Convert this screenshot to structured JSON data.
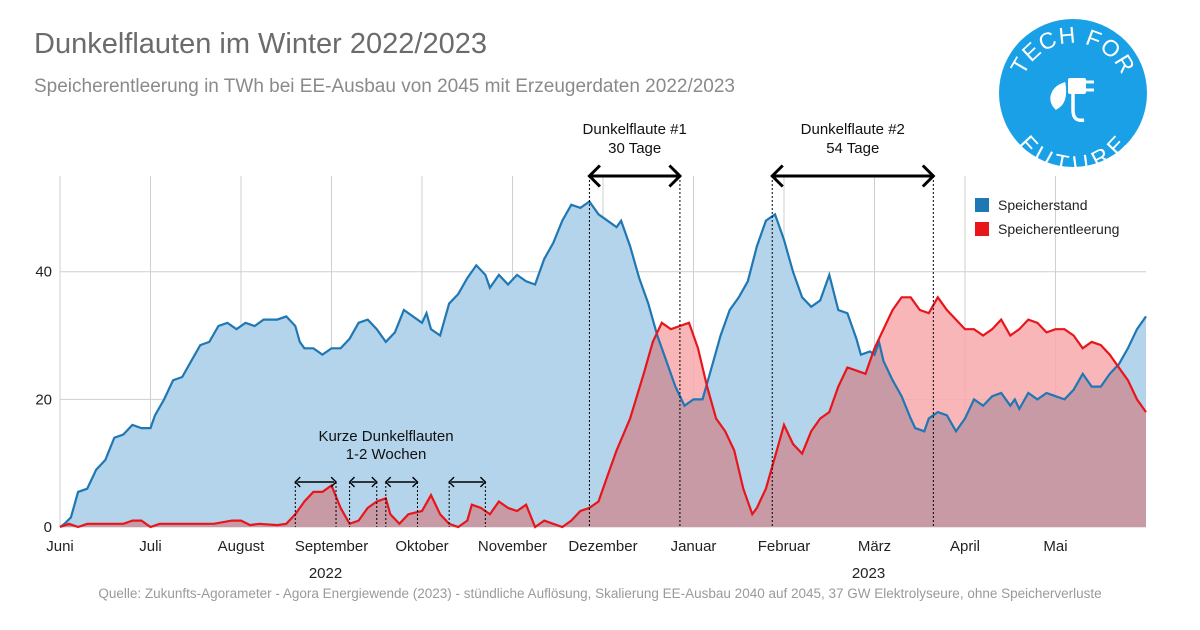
{
  "title": "Dunkelflauten im Winter 2022/2023",
  "subtitle": "Speicherentleerung in TWh bei EE-Ausbau von 2045 mit Erzeugerdaten 2022/2023",
  "source": "Quelle: Zukunfts-Agorameter - Agora Energiewende (2023) - stündliche Auflösung, Skalierung EE-Ausbau 2040 auf 2045, 37 GW Elektrolyseure, ohne Speicherverluste",
  "logo": {
    "text_top": "TECH FOR",
    "text_bottom": "FUTURE",
    "color": "#1aa0e6",
    "icon": "plug-leaf-icon"
  },
  "colors": {
    "speicherstand_line": "#1f77b4",
    "speicherstand_fill": "#b3d4ea",
    "entleerung_line": "#e8151b",
    "entleerung_fill": "#f7a9ab",
    "overlap_fill": "#c89aa5",
    "grid": "#cfcfcf"
  },
  "chart_data": {
    "type": "area",
    "x_unit": "month (0 = 1. Juni 2022, 12 = 1. Juni 2023)",
    "xlim": [
      0,
      12
    ],
    "ylim": [
      0,
      55
    ],
    "yticks": [
      0,
      20,
      40
    ],
    "grid": true,
    "legend_position": "top-right",
    "x_ticks": [
      {
        "x": 0,
        "label": "Juni"
      },
      {
        "x": 1,
        "label": "Juli"
      },
      {
        "x": 2,
        "label": "August"
      },
      {
        "x": 3,
        "label": "September"
      },
      {
        "x": 4,
        "label": "Oktober"
      },
      {
        "x": 5,
        "label": "November"
      },
      {
        "x": 6,
        "label": "Dezember"
      },
      {
        "x": 7,
        "label": "Januar"
      },
      {
        "x": 8,
        "label": "Februar"
      },
      {
        "x": 9,
        "label": "März"
      },
      {
        "x": 10,
        "label": "April"
      },
      {
        "x": 11,
        "label": "Mai"
      }
    ],
    "year_labels": [
      {
        "x": 3.0,
        "label": "2022"
      },
      {
        "x": 9.0,
        "label": "2023"
      }
    ],
    "series": [
      {
        "name": "Speicherstand",
        "points": [
          [
            0,
            0
          ],
          [
            0.05,
            0.5
          ],
          [
            0.12,
            1.5
          ],
          [
            0.2,
            5.5
          ],
          [
            0.3,
            6
          ],
          [
            0.4,
            9
          ],
          [
            0.5,
            10.5
          ],
          [
            0.6,
            14
          ],
          [
            0.7,
            14.5
          ],
          [
            0.8,
            16
          ],
          [
            0.9,
            15.5
          ],
          [
            1.0,
            15.5
          ],
          [
            1.05,
            17.5
          ],
          [
            1.15,
            20
          ],
          [
            1.25,
            23
          ],
          [
            1.35,
            23.5
          ],
          [
            1.45,
            26
          ],
          [
            1.55,
            28.5
          ],
          [
            1.65,
            29
          ],
          [
            1.75,
            31.5
          ],
          [
            1.85,
            32
          ],
          [
            1.95,
            31
          ],
          [
            2.05,
            32
          ],
          [
            2.15,
            31.5
          ],
          [
            2.25,
            32.5
          ],
          [
            2.4,
            32.5
          ],
          [
            2.5,
            33
          ],
          [
            2.6,
            31.5
          ],
          [
            2.65,
            29
          ],
          [
            2.7,
            28
          ],
          [
            2.8,
            28
          ],
          [
            2.9,
            27
          ],
          [
            3.0,
            28
          ],
          [
            3.1,
            28
          ],
          [
            3.2,
            29.5
          ],
          [
            3.3,
            32
          ],
          [
            3.4,
            32.5
          ],
          [
            3.5,
            31
          ],
          [
            3.6,
            29
          ],
          [
            3.7,
            30.5
          ],
          [
            3.8,
            34
          ],
          [
            3.9,
            33
          ],
          [
            4.0,
            32
          ],
          [
            4.05,
            33.5
          ],
          [
            4.1,
            31
          ],
          [
            4.2,
            30
          ],
          [
            4.3,
            35
          ],
          [
            4.4,
            36.5
          ],
          [
            4.5,
            39
          ],
          [
            4.6,
            41
          ],
          [
            4.7,
            39.5
          ],
          [
            4.75,
            37.5
          ],
          [
            4.85,
            39.5
          ],
          [
            4.95,
            38
          ],
          [
            5.05,
            39.5
          ],
          [
            5.15,
            38.5
          ],
          [
            5.25,
            38
          ],
          [
            5.35,
            42
          ],
          [
            5.45,
            44.5
          ],
          [
            5.55,
            48
          ],
          [
            5.65,
            50.5
          ],
          [
            5.75,
            50
          ],
          [
            5.85,
            51
          ],
          [
            5.95,
            49
          ],
          [
            6.05,
            48
          ],
          [
            6.15,
            47
          ],
          [
            6.2,
            48
          ],
          [
            6.3,
            44
          ],
          [
            6.4,
            39
          ],
          [
            6.5,
            35
          ],
          [
            6.6,
            30
          ],
          [
            6.7,
            26
          ],
          [
            6.8,
            22
          ],
          [
            6.9,
            19
          ],
          [
            7.0,
            20
          ],
          [
            7.1,
            20
          ],
          [
            7.2,
            25
          ],
          [
            7.3,
            30
          ],
          [
            7.4,
            34
          ],
          [
            7.5,
            36
          ],
          [
            7.6,
            38.5
          ],
          [
            7.7,
            44
          ],
          [
            7.8,
            48
          ],
          [
            7.9,
            49
          ],
          [
            8.0,
            45
          ],
          [
            8.1,
            40
          ],
          [
            8.2,
            36
          ],
          [
            8.3,
            34.5
          ],
          [
            8.4,
            35.5
          ],
          [
            8.5,
            39.5
          ],
          [
            8.6,
            34
          ],
          [
            8.7,
            33.5
          ],
          [
            8.8,
            29.5
          ],
          [
            8.85,
            27
          ],
          [
            8.95,
            27.5
          ],
          [
            9.0,
            27
          ],
          [
            9.05,
            29
          ],
          [
            9.1,
            26
          ],
          [
            9.2,
            23
          ],
          [
            9.3,
            20.5
          ],
          [
            9.4,
            17
          ],
          [
            9.45,
            15.5
          ],
          [
            9.55,
            15
          ],
          [
            9.6,
            17
          ],
          [
            9.7,
            18
          ],
          [
            9.8,
            17.5
          ],
          [
            9.9,
            15
          ],
          [
            10.0,
            17
          ],
          [
            10.1,
            20
          ],
          [
            10.2,
            19
          ],
          [
            10.3,
            20.5
          ],
          [
            10.4,
            21
          ],
          [
            10.5,
            19
          ],
          [
            10.55,
            20
          ],
          [
            10.6,
            18.5
          ],
          [
            10.7,
            21
          ],
          [
            10.8,
            20
          ],
          [
            10.9,
            21
          ],
          [
            11.0,
            20.5
          ],
          [
            11.1,
            20
          ],
          [
            11.2,
            21.5
          ],
          [
            11.3,
            24
          ],
          [
            11.4,
            22
          ],
          [
            11.5,
            22
          ],
          [
            11.6,
            24
          ],
          [
            11.7,
            25.5
          ],
          [
            11.8,
            28
          ],
          [
            11.9,
            31
          ],
          [
            12.0,
            33
          ]
        ]
      },
      {
        "name": "Speicherentleerung",
        "points": [
          [
            0,
            0
          ],
          [
            0.1,
            0.5
          ],
          [
            0.2,
            0
          ],
          [
            0.3,
            0.5
          ],
          [
            0.5,
            0.5
          ],
          [
            0.7,
            0.5
          ],
          [
            0.8,
            1
          ],
          [
            0.9,
            1
          ],
          [
            1.0,
            0
          ],
          [
            1.1,
            0.5
          ],
          [
            1.3,
            0.5
          ],
          [
            1.5,
            0.5
          ],
          [
            1.7,
            0.5
          ],
          [
            1.9,
            1
          ],
          [
            2.0,
            1
          ],
          [
            2.1,
            0.3
          ],
          [
            2.2,
            0.5
          ],
          [
            2.4,
            0.3
          ],
          [
            2.5,
            0.5
          ],
          [
            2.6,
            2
          ],
          [
            2.7,
            4
          ],
          [
            2.8,
            5.5
          ],
          [
            2.9,
            5.5
          ],
          [
            3.0,
            6.5
          ],
          [
            3.1,
            3
          ],
          [
            3.2,
            0.5
          ],
          [
            3.3,
            1
          ],
          [
            3.4,
            3
          ],
          [
            3.5,
            4
          ],
          [
            3.6,
            4.5
          ],
          [
            3.65,
            2
          ],
          [
            3.75,
            0.5
          ],
          [
            3.85,
            2
          ],
          [
            4.0,
            2.5
          ],
          [
            4.1,
            5
          ],
          [
            4.2,
            2
          ],
          [
            4.3,
            0.5
          ],
          [
            4.4,
            0
          ],
          [
            4.5,
            1
          ],
          [
            4.55,
            3.5
          ],
          [
            4.65,
            3
          ],
          [
            4.75,
            2
          ],
          [
            4.85,
            4
          ],
          [
            4.95,
            3
          ],
          [
            5.05,
            2.5
          ],
          [
            5.15,
            3.5
          ],
          [
            5.25,
            0
          ],
          [
            5.35,
            1
          ],
          [
            5.45,
            0.5
          ],
          [
            5.55,
            0
          ],
          [
            5.65,
            1
          ],
          [
            5.75,
            2.5
          ],
          [
            5.85,
            3
          ],
          [
            5.95,
            4
          ],
          [
            6.05,
            8
          ],
          [
            6.15,
            12
          ],
          [
            6.3,
            17
          ],
          [
            6.45,
            24
          ],
          [
            6.55,
            29
          ],
          [
            6.65,
            32
          ],
          [
            6.75,
            31
          ],
          [
            6.85,
            31.5
          ],
          [
            6.95,
            32
          ],
          [
            7.05,
            28
          ],
          [
            7.15,
            22
          ],
          [
            7.25,
            17
          ],
          [
            7.35,
            15
          ],
          [
            7.45,
            12
          ],
          [
            7.55,
            6
          ],
          [
            7.65,
            2
          ],
          [
            7.7,
            3
          ],
          [
            7.8,
            6
          ],
          [
            7.9,
            11
          ],
          [
            8.0,
            16
          ],
          [
            8.1,
            13
          ],
          [
            8.2,
            11.5
          ],
          [
            8.3,
            15
          ],
          [
            8.4,
            17
          ],
          [
            8.5,
            18
          ],
          [
            8.6,
            22
          ],
          [
            8.7,
            25
          ],
          [
            8.8,
            24.5
          ],
          [
            8.9,
            24
          ],
          [
            9.0,
            28
          ],
          [
            9.1,
            31
          ],
          [
            9.2,
            34
          ],
          [
            9.3,
            36
          ],
          [
            9.4,
            36
          ],
          [
            9.5,
            34
          ],
          [
            9.6,
            33.5
          ],
          [
            9.7,
            36
          ],
          [
            9.8,
            34
          ],
          [
            9.9,
            32.5
          ],
          [
            10.0,
            31
          ],
          [
            10.1,
            31
          ],
          [
            10.2,
            30
          ],
          [
            10.3,
            31
          ],
          [
            10.4,
            32.5
          ],
          [
            10.5,
            30
          ],
          [
            10.6,
            31
          ],
          [
            10.7,
            32.5
          ],
          [
            10.8,
            32
          ],
          [
            10.9,
            30.5
          ],
          [
            11.0,
            31
          ],
          [
            11.1,
            31
          ],
          [
            11.2,
            30
          ],
          [
            11.3,
            28
          ],
          [
            11.4,
            29
          ],
          [
            11.5,
            28.5
          ],
          [
            11.6,
            27
          ],
          [
            11.7,
            25
          ],
          [
            11.8,
            23
          ],
          [
            11.9,
            20
          ],
          [
            12.0,
            18
          ]
        ]
      }
    ],
    "annotations": [
      {
        "label": "Dunkelflaute #1",
        "sublabel": "30 Tage",
        "x_start": 5.85,
        "x_end": 6.85
      },
      {
        "label": "Dunkelflaute #2",
        "sublabel": "54 Tage",
        "x_start": 7.87,
        "x_end": 9.65
      },
      {
        "label": "Kurze Dunkelflauten",
        "sublabel": "1-2 Wochen"
      }
    ],
    "short_arrows": [
      [
        2.6,
        3.05
      ],
      [
        3.2,
        3.5
      ],
      [
        3.6,
        3.95
      ],
      [
        4.3,
        4.7
      ]
    ]
  }
}
